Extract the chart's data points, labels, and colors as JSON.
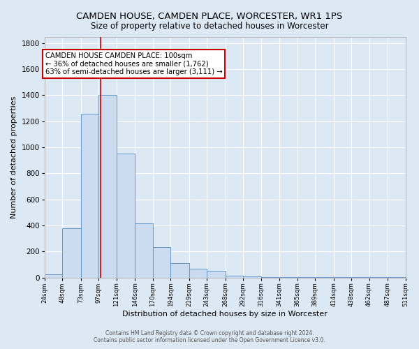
{
  "title": "CAMDEN HOUSE, CAMDEN PLACE, WORCESTER, WR1 1PS",
  "subtitle": "Size of property relative to detached houses in Worcester",
  "xlabel": "Distribution of detached houses by size in Worcester",
  "ylabel": "Number of detached properties",
  "bin_edges": [
    24,
    48,
    73,
    97,
    121,
    146,
    170,
    194,
    219,
    243,
    268,
    292,
    316,
    341,
    365,
    389,
    414,
    438,
    462,
    487,
    511
  ],
  "bar_heights": [
    25,
    380,
    1260,
    1400,
    950,
    415,
    235,
    110,
    70,
    50,
    15,
    10,
    5,
    3,
    2,
    1,
    1,
    1,
    1,
    2
  ],
  "bar_color": "#ccdcf0",
  "bar_edge_color": "#6699cc",
  "property_line_x": 100,
  "property_line_color": "#cc0000",
  "annotation_text": "CAMDEN HOUSE CAMDEN PLACE: 100sqm\n← 36% of detached houses are smaller (1,762)\n63% of semi-detached houses are larger (3,111) →",
  "annotation_box_color": "#ffffff",
  "annotation_box_edge_color": "#cc0000",
  "ylim": [
    0,
    1850
  ],
  "yticks": [
    0,
    200,
    400,
    600,
    800,
    1000,
    1200,
    1400,
    1600,
    1800
  ],
  "background_color": "#dde8f5",
  "grid_color": "#ffffff",
  "footer_line1": "Contains HM Land Registry data © Crown copyright and database right 2024.",
  "footer_line2": "Contains public sector information licensed under the Open Government Licence v3.0."
}
